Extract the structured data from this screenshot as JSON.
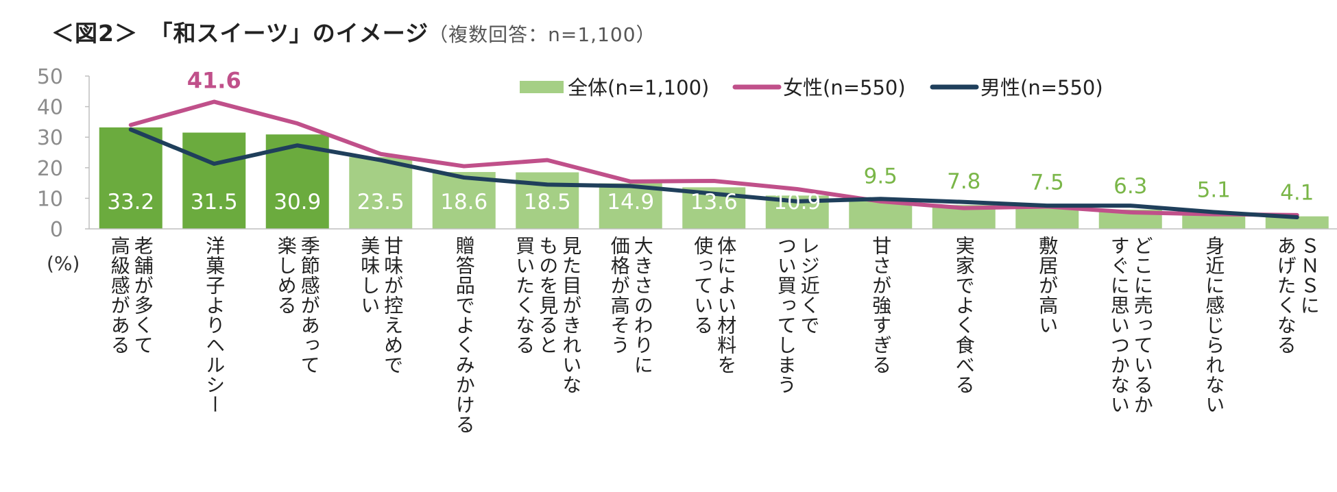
{
  "title": {
    "main": "＜図2＞　「和スイーツ」のイメージ",
    "note": "（複数回答：n=1,100）"
  },
  "unit_label": "(%)",
  "colors": {
    "bar_dark": "#6bab3e",
    "bar_light": "#a5cf85",
    "female": "#c0508a",
    "male": "#1f3f5b",
    "axis_text": "#8c8c8c",
    "label_green": "#7ab648"
  },
  "chart_data": {
    "type": "bar",
    "title": "「和スイーツ」のイメージ",
    "subtitle": "（複数回答：n=1,100）",
    "ylabel": "(%)",
    "ylim": [
      0,
      50
    ],
    "yticks": [
      0,
      10,
      20,
      30,
      40,
      50
    ],
    "legend_position": "top-right",
    "categories": [
      "老舗が多くて\n高級感がある",
      "洋菓子よりヘルシー",
      "季節感があって\n楽しめる",
      "甘味が控えめで\n美味しい",
      "贈答品でよくみかける",
      "見た目がきれいな\nものを見ると\n買いたくなる",
      "大きさのわりに\n価格が高そう",
      "体によい材料を\n使っている",
      "レジ近くで\nつい買ってしまう",
      "甘さが強すぎる",
      "実家でよく食べる",
      "敷居が高い",
      "どこに売っているか\nすぐに思いつかない",
      "身近に感じられない",
      "ＳＮＳに\nあげたくなる"
    ],
    "series": [
      {
        "name": "全体(n=1,100)",
        "type": "bar",
        "values": [
          33.2,
          31.5,
          30.9,
          23.5,
          18.6,
          18.5,
          14.9,
          13.6,
          10.9,
          9.5,
          7.8,
          7.5,
          6.3,
          5.1,
          4.1
        ]
      },
      {
        "name": "女性(n=550)",
        "type": "line",
        "values": [
          34.0,
          41.6,
          34.5,
          24.5,
          20.5,
          22.5,
          15.5,
          15.7,
          13.0,
          9.0,
          6.8,
          7.3,
          5.4,
          4.8,
          4.5
        ]
      },
      {
        "name": "男性(n=550)",
        "type": "line",
        "values": [
          32.5,
          21.3,
          27.3,
          22.5,
          16.8,
          14.5,
          14.0,
          11.5,
          9.0,
          9.8,
          8.8,
          7.6,
          7.6,
          5.5,
          3.8
        ]
      }
    ],
    "annotations": [
      {
        "series": "女性(n=550)",
        "index": 1,
        "text": "41.6"
      }
    ]
  }
}
